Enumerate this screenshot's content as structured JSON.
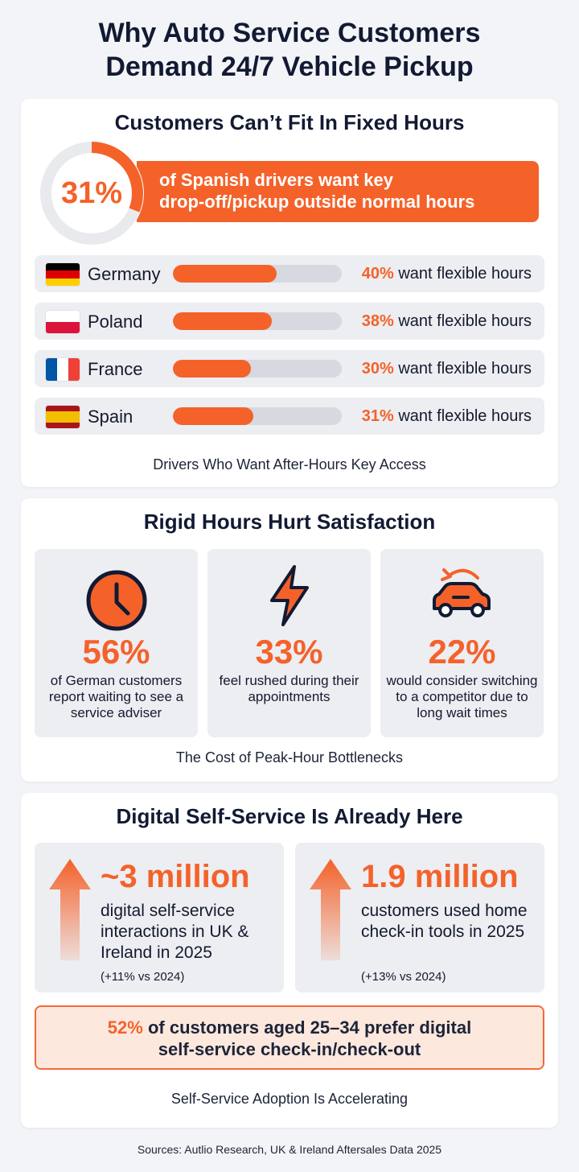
{
  "title": {
    "line1": "Why Auto Service Customers",
    "line2": "Demand 24/7 Vehicle Pickup"
  },
  "fixed_hours": {
    "heading": "Customers Can’t Fit In Fixed Hours",
    "highlight_value": "31%",
    "highlight_fraction": 0.31,
    "highlight_line1": "of Spanish drivers want key",
    "highlight_line2": "drop-off/pickup outside normal hours",
    "suffix": "want flexible hours",
    "countries": [
      {
        "name": "Germany",
        "pct_label": "40%",
        "value": 40,
        "flag": "de-flag-icon"
      },
      {
        "name": "Poland",
        "pct_label": "38%",
        "value": 38,
        "flag": "pl-flag-icon"
      },
      {
        "name": "France",
        "pct_label": "30%",
        "value": 30,
        "flag": "fr-flag-icon"
      },
      {
        "name": "Spain",
        "pct_label": "31%",
        "value": 31,
        "flag": "es-flag-icon"
      }
    ],
    "caption": "Drivers Who Want After-Hours Key Access"
  },
  "satisfaction": {
    "heading": "Rigid Hours Hurt Satisfaction",
    "stats": [
      {
        "icon": "clock-icon",
        "value": "56%",
        "desc": "of German customers report waiting to see a service adviser"
      },
      {
        "icon": "lightning-icon",
        "value": "33%",
        "desc": "feel rushed during their appointments"
      },
      {
        "icon": "car-return-icon",
        "value": "22%",
        "desc": "would consider switching to a competitor due to long wait times"
      }
    ],
    "caption": "The Cost of Peak-Hour Bottlenecks"
  },
  "digital": {
    "heading": "Digital Self-Service Is Already Here",
    "stats": [
      {
        "icon": "arrow-up-icon",
        "value": "~3 million",
        "desc": "digital self-service interactions in UK & Ireland in 2025",
        "note": "(+11% vs 2024)"
      },
      {
        "icon": "arrow-up-icon",
        "value": "1.9 million",
        "desc": "customers used home check-in tools in 2025",
        "note": "(+13% vs 2024)"
      }
    ],
    "preference_pct": "52%",
    "preference_text1": "of customers aged 25–34 prefer digital",
    "preference_text2": "self-service check-in/check-out",
    "caption": "Self-Service Adoption Is Accelerating"
  },
  "sources": "Sources: Autlio Research, UK & Ireland Aftersales Data 2025",
  "colors": {
    "accent": "#f4622a",
    "ring_track": "#e8eaee",
    "bar_track": "#d6d9df",
    "navy": "#121a33"
  }
}
